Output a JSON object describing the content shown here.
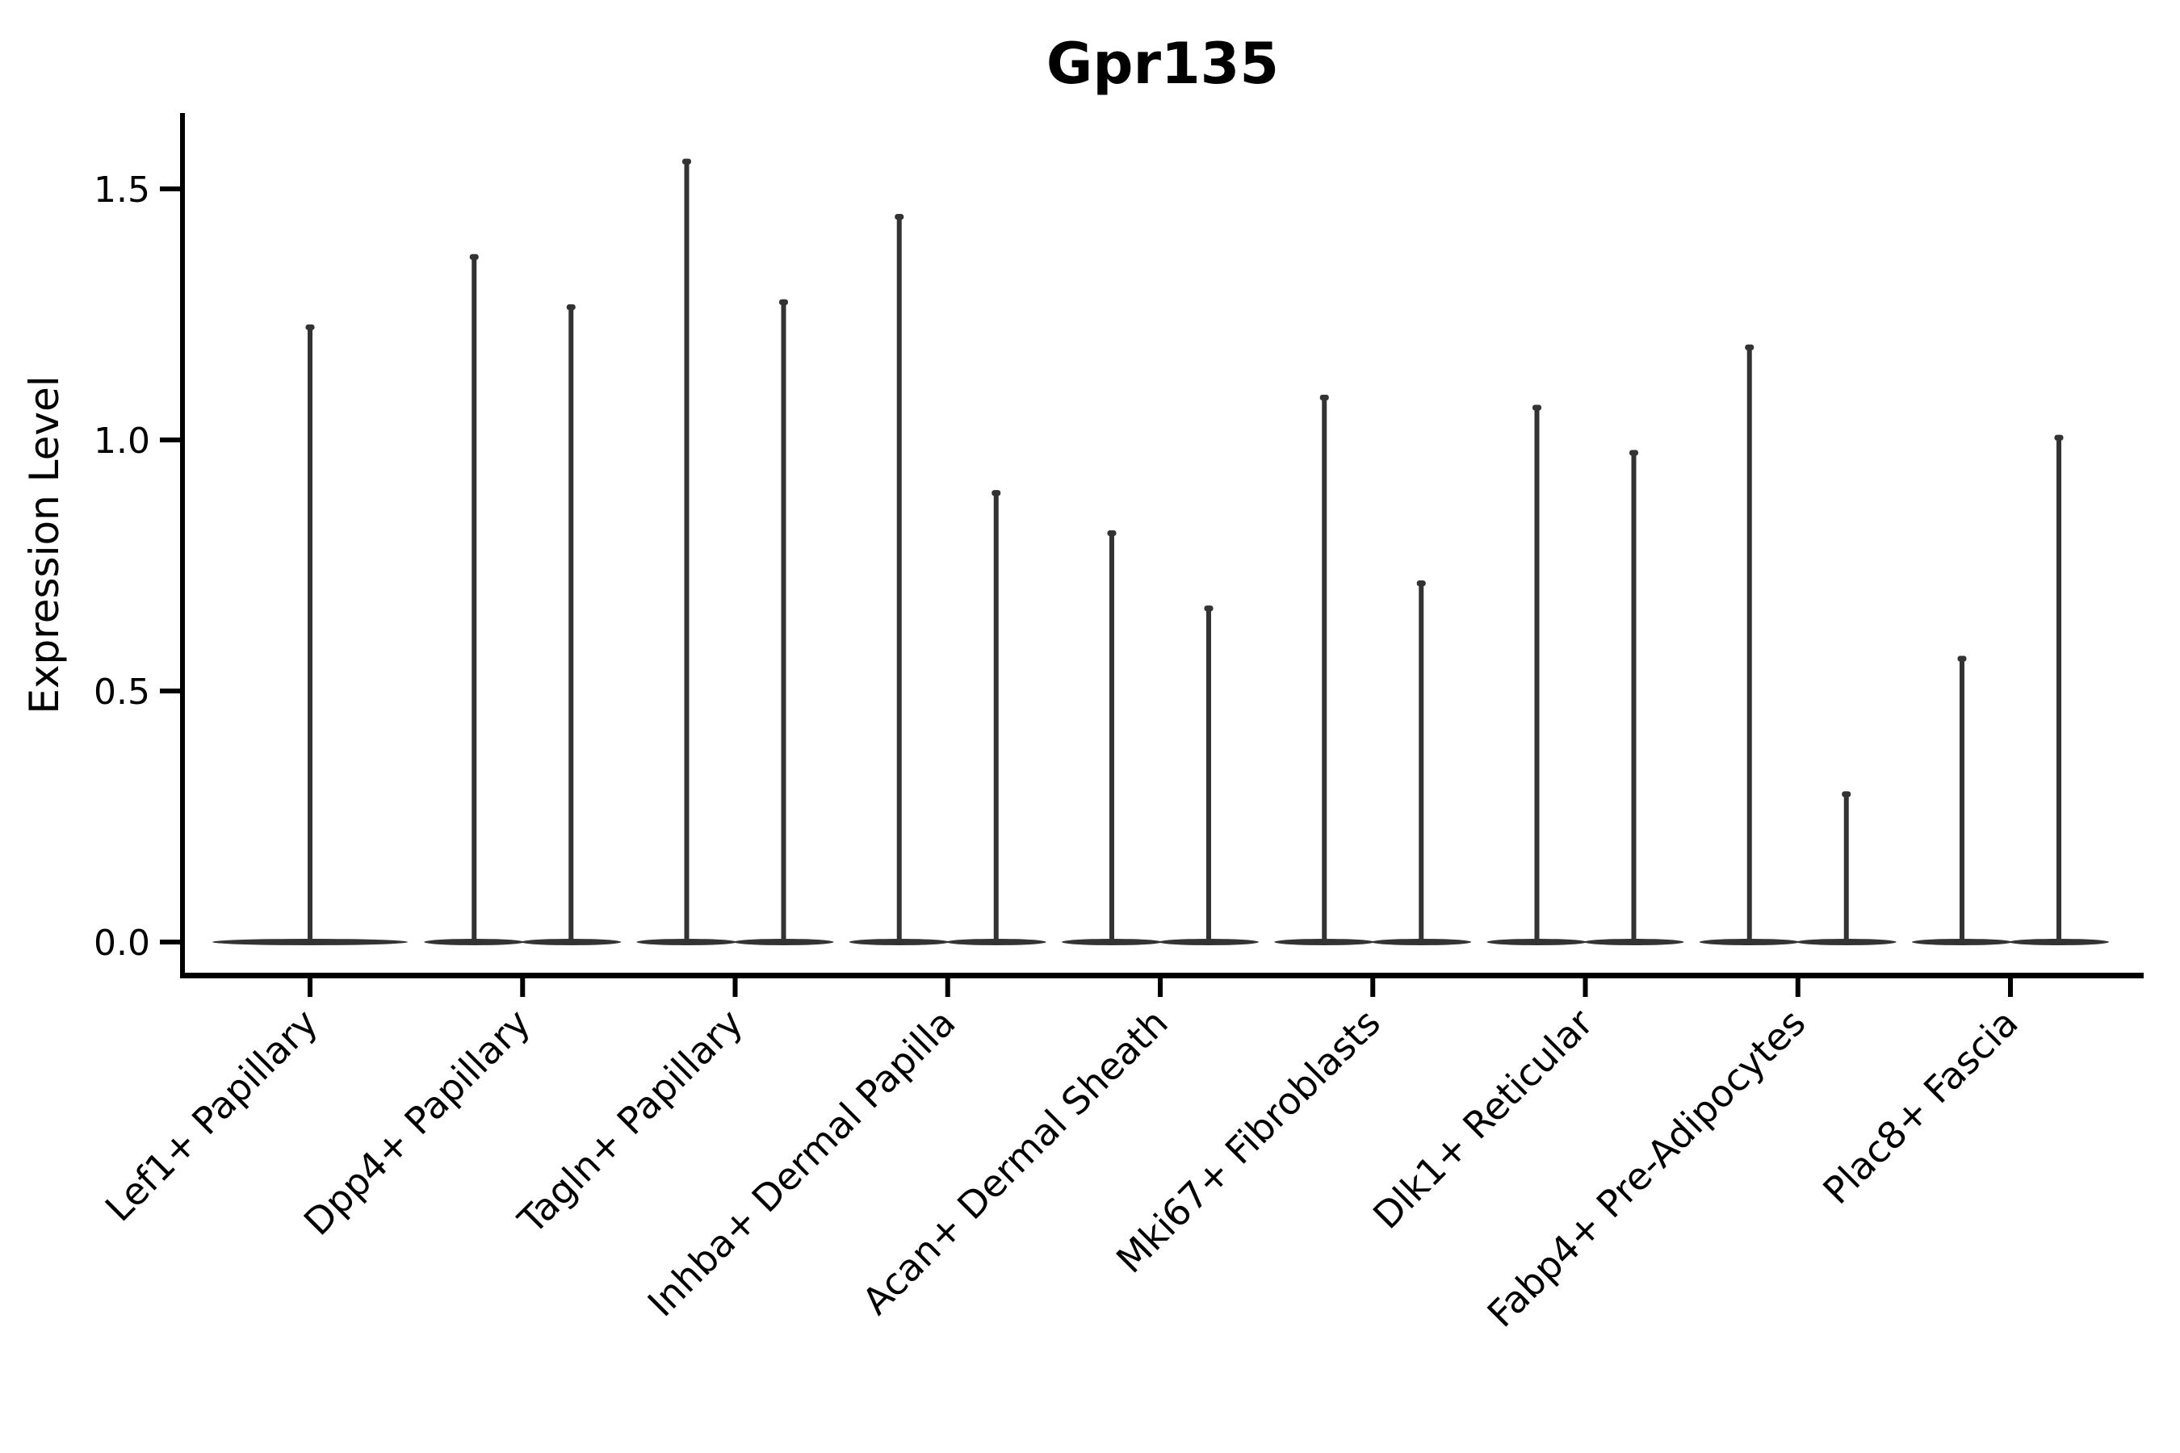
{
  "chart_data": {
    "type": "violin",
    "title": "Gpr135",
    "ylabel": "Expression Level",
    "xlabel": "",
    "y_ticks": [
      "0.0",
      "0.5",
      "1.0",
      "1.5"
    ],
    "ylim": [
      -0.06,
      1.65
    ],
    "grid": false,
    "legend": "none",
    "violin_color": "#333333",
    "axis_color": "#000000",
    "background_color": "#ffffff",
    "categories": [
      {
        "label": "Lef1+ Papillary",
        "spike_max": [
          1.23
        ]
      },
      {
        "label": "Dpp4+ Papillary",
        "spike_max": [
          1.37,
          1.27
        ]
      },
      {
        "label": "Tagln+ Papillary",
        "spike_max": [
          1.56,
          1.28
        ]
      },
      {
        "label": "Inhba+ Dermal Papilla",
        "spike_max": [
          1.45,
          0.9
        ]
      },
      {
        "label": "Acan+ Dermal Sheath",
        "spike_max": [
          0.82,
          0.67
        ]
      },
      {
        "label": "Mki67+ Fibroblasts",
        "spike_max": [
          1.09,
          0.72
        ]
      },
      {
        "label": "Dlk1+ Reticular",
        "spike_max": [
          1.07,
          0.98
        ]
      },
      {
        "label": "Fabp4+ Pre-Adipocytes",
        "spike_max": [
          1.19,
          0.3
        ]
      },
      {
        "label": "Plac8+ Fascia",
        "spike_max": [
          0.57,
          1.01
        ]
      }
    ]
  }
}
